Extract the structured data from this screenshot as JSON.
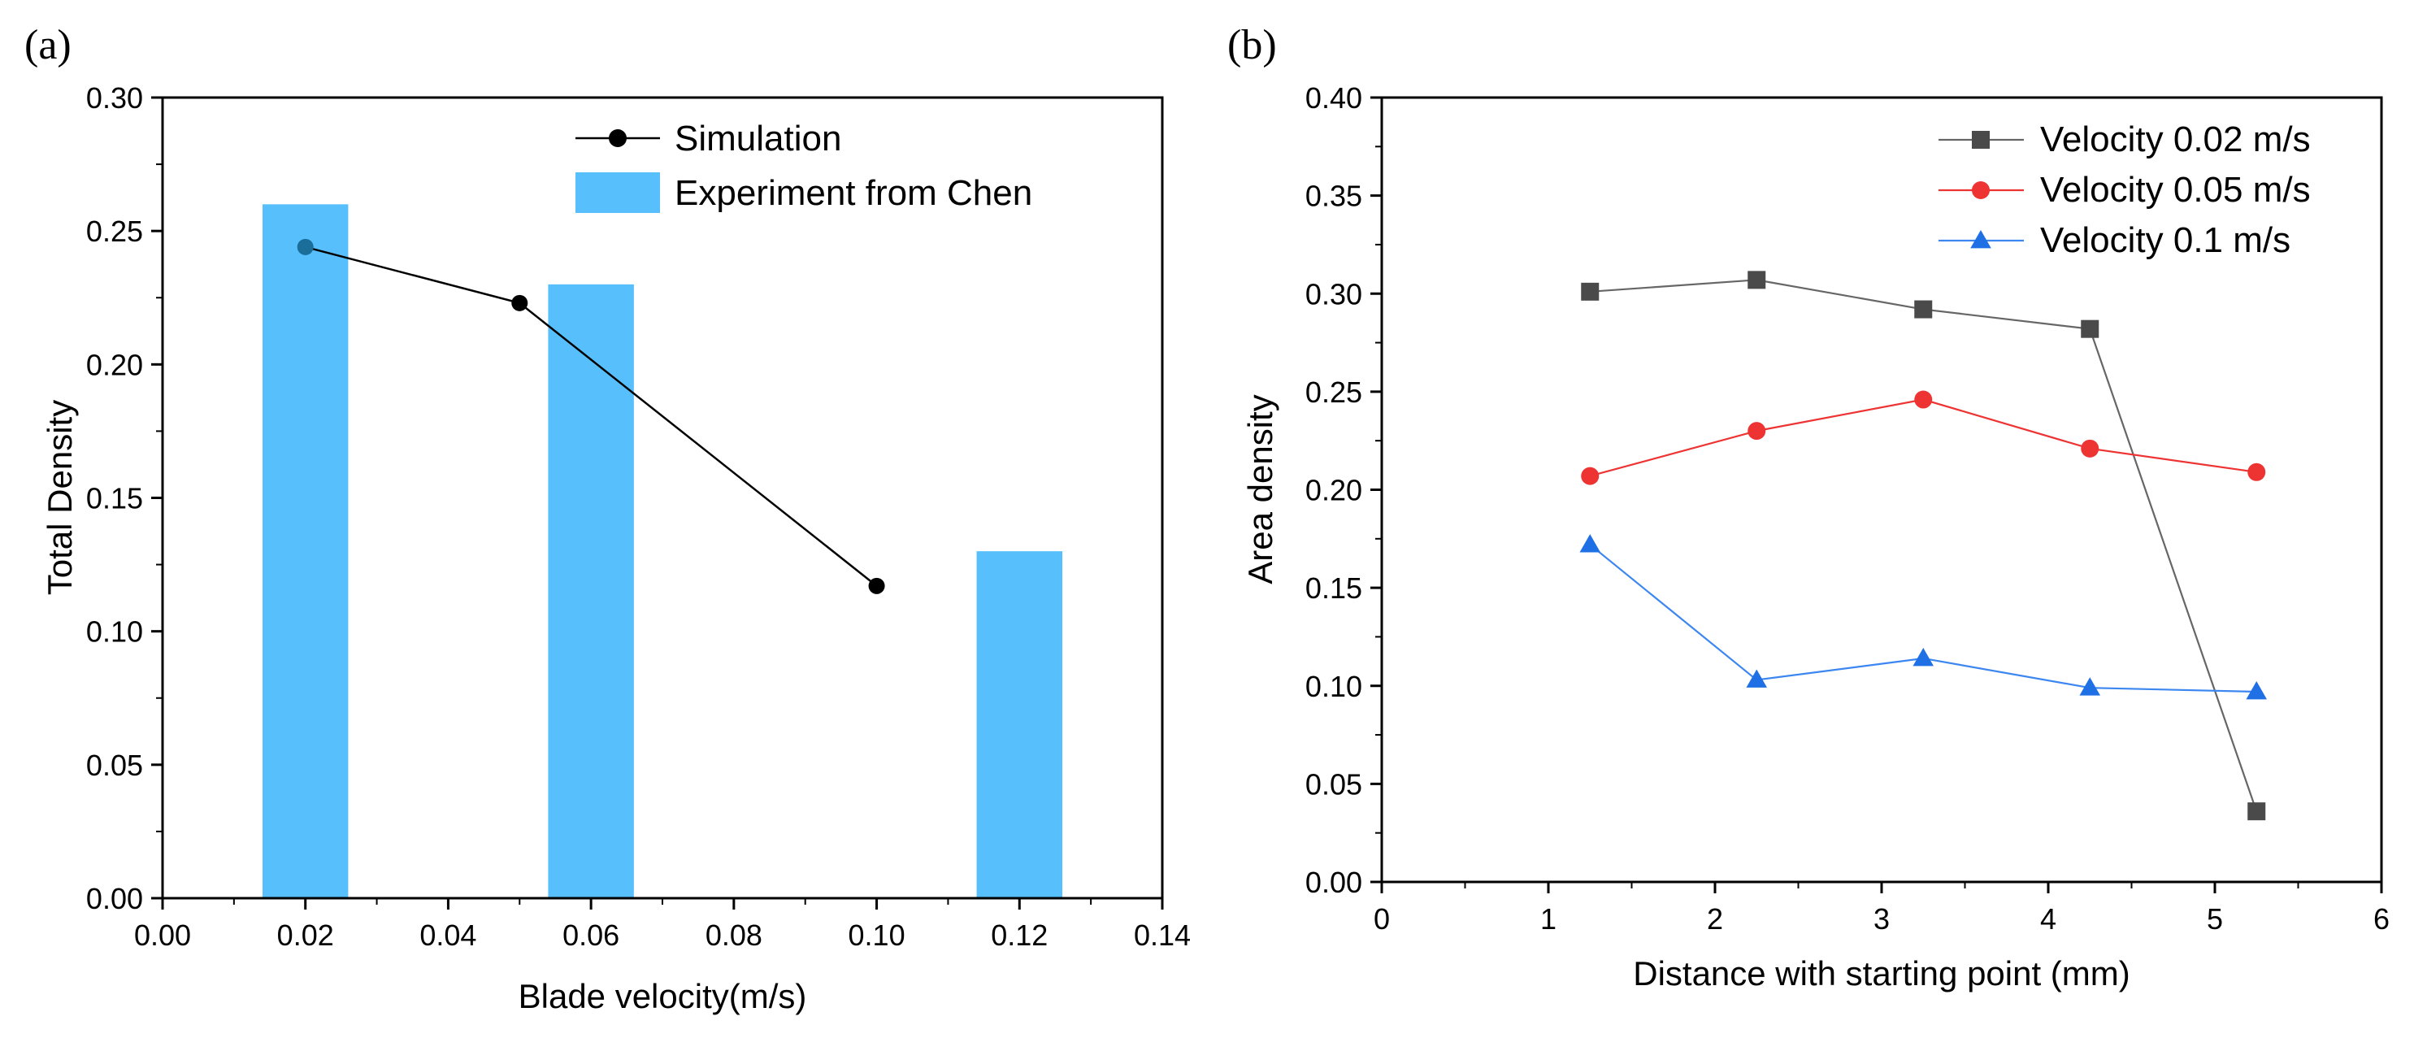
{
  "chart_data": [
    {
      "type": "bar",
      "panel_label": "(a)",
      "xlabel": "Blade velocity(m/s)",
      "ylabel": "Total Density",
      "xlim": [
        0.0,
        0.14
      ],
      "ylim": [
        0.0,
        0.3
      ],
      "x_ticks": [
        "0.00",
        "0.02",
        "0.04",
        "0.06",
        "0.08",
        "0.10",
        "0.12",
        "0.14"
      ],
      "y_ticks": [
        "0.00",
        "0.05",
        "0.10",
        "0.15",
        "0.20",
        "0.25",
        "0.30"
      ],
      "series": [
        {
          "name": "Simulation",
          "kind": "line",
          "color": "#000000",
          "x": [
            0.02,
            0.05,
            0.1
          ],
          "y": [
            0.244,
            0.223,
            0.117
          ]
        },
        {
          "name": "Experiment from Chen",
          "kind": "bar",
          "color": "#56BFFC",
          "x": [
            0.02,
            0.06,
            0.12
          ],
          "y": [
            0.26,
            0.23,
            0.13
          ],
          "bar_width": 0.012
        }
      ],
      "legend": "top-center"
    },
    {
      "type": "line",
      "panel_label": "(b)",
      "xlabel": "Distance with starting point (mm)",
      "ylabel": "Area density",
      "xlim": [
        0,
        6
      ],
      "ylim": [
        0.0,
        0.4
      ],
      "x_ticks": [
        "0",
        "1",
        "2",
        "3",
        "4",
        "5",
        "6"
      ],
      "y_ticks": [
        "0.00",
        "0.05",
        "0.10",
        "0.15",
        "0.20",
        "0.25",
        "0.30",
        "0.35",
        "0.40"
      ],
      "series": [
        {
          "name": "Velocity 0.02 m/s",
          "marker": "square",
          "color": "#4a4a4a",
          "line_color": "#666666",
          "x": [
            1.25,
            2.25,
            3.25,
            4.25,
            5.25
          ],
          "y": [
            0.301,
            0.307,
            0.292,
            0.282,
            0.036
          ]
        },
        {
          "name": "Velocity 0.05 m/s",
          "marker": "circle",
          "color": "#ee3333",
          "line_color": "#ee3333",
          "x": [
            1.25,
            2.25,
            3.25,
            4.25,
            5.25
          ],
          "y": [
            0.207,
            0.23,
            0.246,
            0.221,
            0.209
          ]
        },
        {
          "name": "Velocity 0.1 m/s",
          "marker": "triangle",
          "color": "#1f6fe5",
          "line_color": "#3b86f0",
          "x": [
            1.25,
            2.25,
            3.25,
            4.25,
            5.25
          ],
          "y": [
            0.172,
            0.103,
            0.114,
            0.099,
            0.097
          ]
        }
      ],
      "legend": "top-right"
    }
  ]
}
